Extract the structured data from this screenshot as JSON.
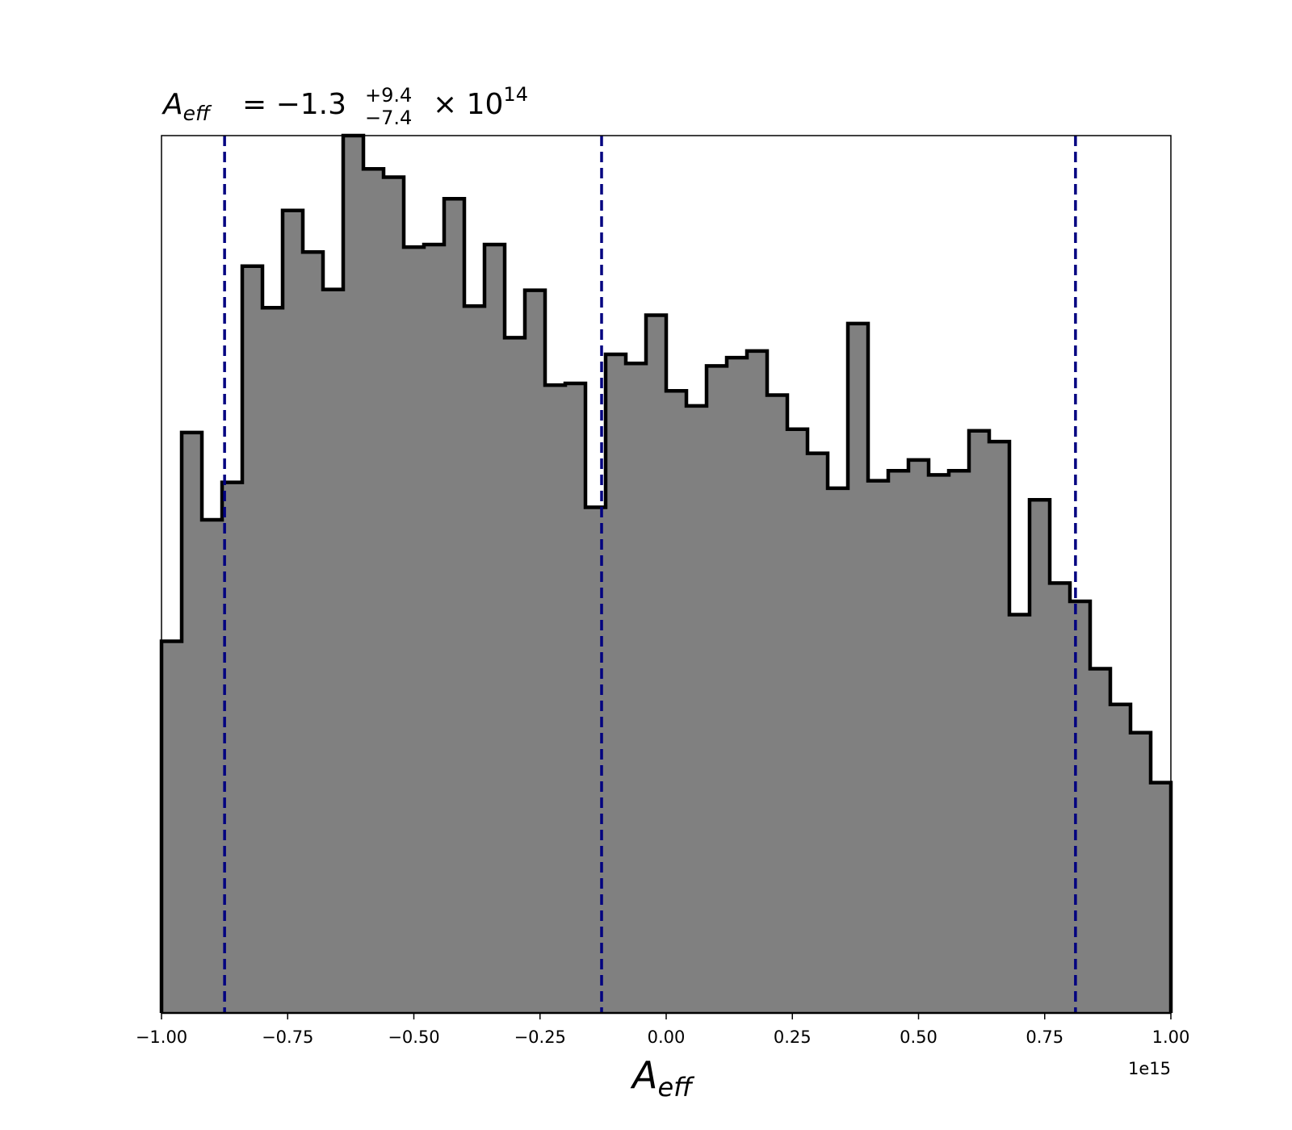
{
  "chart_data": {
    "type": "histogram",
    "title": {
      "symbol": "A",
      "symbol_sub": "eff",
      "equals": "= −1.3",
      "upper": "+9.4",
      "lower": "−7.4",
      "times": "× 10",
      "exponent": "14"
    },
    "xlabel": {
      "symbol": "A",
      "sub": "eff"
    },
    "x_offset_text": "1e15",
    "xlim": [
      -1.0,
      1.0
    ],
    "x_scale": 1000000000000000.0,
    "xticks": [
      -1.0,
      -0.75,
      -0.5,
      -0.25,
      0.0,
      0.25,
      0.5,
      0.75,
      1.0
    ],
    "xtick_labels": [
      "−1.00",
      "−0.75",
      "−0.50",
      "−0.25",
      "0.00",
      "0.25",
      "0.50",
      "0.75",
      "1.00"
    ],
    "y_axis_visible": false,
    "ylim": [
      0,
      1055
    ],
    "bin_edges": [
      -1.0,
      -0.96,
      -0.92,
      -0.88,
      -0.84,
      -0.8,
      -0.76,
      -0.72,
      -0.68,
      -0.64,
      -0.6,
      -0.56,
      -0.52,
      -0.48,
      -0.44,
      -0.4,
      -0.36,
      -0.32,
      -0.28,
      -0.24,
      -0.2,
      -0.16,
      -0.12,
      -0.08,
      -0.04,
      0.0,
      0.04,
      0.08,
      0.12,
      0.16,
      0.2,
      0.24,
      0.28,
      0.32,
      0.36,
      0.4,
      0.44,
      0.48,
      0.52,
      0.56,
      0.6,
      0.64,
      0.68,
      0.72,
      0.76,
      0.8,
      0.84,
      0.88,
      0.92,
      0.96,
      1.0
    ],
    "counts": [
      447,
      698,
      593,
      638,
      898,
      848,
      965,
      915,
      870,
      1055,
      1015,
      1005,
      921,
      924,
      979,
      850,
      924,
      812,
      869,
      755,
      757,
      608,
      792,
      781,
      839,
      748,
      730,
      778,
      788,
      796,
      743,
      702,
      673,
      631,
      829,
      640,
      652,
      665,
      647,
      652,
      700,
      687,
      479,
      617,
      517,
      495,
      414,
      371,
      337,
      277
    ],
    "fill_color": "#808080",
    "edge_color": "#000000",
    "quantile_lines": {
      "values": [
        -0.875,
        -0.128,
        0.811
      ],
      "color": "#000080",
      "style": "dashed"
    }
  }
}
